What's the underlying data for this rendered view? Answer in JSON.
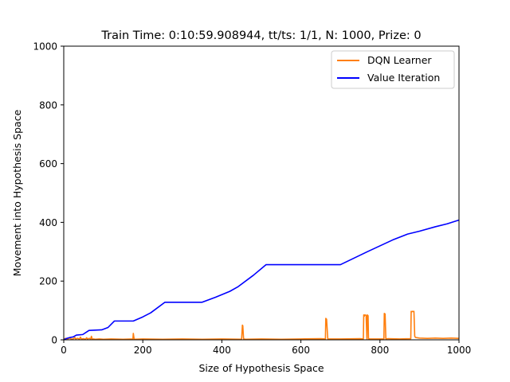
{
  "chart_data": {
    "type": "line",
    "title": "Train Time: 0:10:59.908944, tt/ts: 1/1, N: 1000, Prize: 0",
    "xlabel": "Size of Hypothesis Space",
    "ylabel": "Movement into Hypothesis Space",
    "xlim": [
      0,
      1000
    ],
    "ylim": [
      0,
      1000
    ],
    "xticks": [
      0,
      200,
      400,
      600,
      800,
      1000
    ],
    "yticks": [
      0,
      200,
      400,
      600,
      800,
      1000
    ],
    "grid": false,
    "legend_position": "top-right",
    "series": [
      {
        "name": "DQN Learner",
        "color": "#ff7f0e",
        "x": [
          0,
          5,
          10,
          15,
          20,
          25,
          28,
          30,
          35,
          40,
          42,
          45,
          50,
          55,
          58,
          60,
          65,
          68,
          70,
          72,
          75,
          80,
          90,
          100,
          120,
          150,
          175,
          176,
          178,
          180,
          200,
          250,
          300,
          350,
          400,
          450,
          452,
          453,
          455,
          460,
          500,
          550,
          600,
          650,
          662,
          663,
          665,
          668,
          700,
          750,
          758,
          759,
          760,
          762,
          765,
          767,
          768,
          770,
          771,
          772,
          774,
          780,
          800,
          810,
          811,
          813,
          815,
          820,
          850,
          878,
          879,
          880,
          882,
          885,
          886,
          888,
          890,
          900,
          920,
          940,
          960,
          980,
          1000
        ],
        "y": [
          2,
          5,
          3,
          6,
          2,
          4,
          8,
          3,
          5,
          2,
          9,
          3,
          4,
          2,
          7,
          3,
          5,
          2,
          12,
          2,
          3,
          2,
          3,
          2,
          3,
          2,
          3,
          22,
          3,
          2,
          3,
          2,
          3,
          2,
          3,
          2,
          50,
          48,
          3,
          2,
          3,
          2,
          3,
          4,
          3,
          73,
          70,
          3,
          3,
          4,
          3,
          85,
          80,
          85,
          83,
          3,
          85,
          82,
          3,
          4,
          3,
          3,
          3,
          3,
          90,
          88,
          3,
          4,
          3,
          4,
          97,
          95,
          97,
          96,
          97,
          12,
          8,
          6,
          5,
          6,
          5,
          6,
          5
        ]
      },
      {
        "name": "Value Iteration",
        "color": "#0000ff",
        "x": [
          0,
          8,
          16,
          24,
          32,
          48,
          64,
          96,
          112,
          128,
          160,
          176,
          200,
          220,
          256,
          300,
          350,
          384,
          420,
          440,
          480,
          512,
          560,
          640,
          700,
          768,
          800,
          832,
          870,
          900,
          940,
          970,
          1000
        ],
        "y": [
          0,
          5,
          8,
          10,
          16,
          18,
          32,
          34,
          42,
          64,
          64,
          64,
          78,
          92,
          128,
          128,
          128,
          145,
          165,
          180,
          220,
          256,
          256,
          256,
          256,
          300,
          320,
          340,
          360,
          370,
          385,
          395,
          408
        ]
      }
    ]
  }
}
